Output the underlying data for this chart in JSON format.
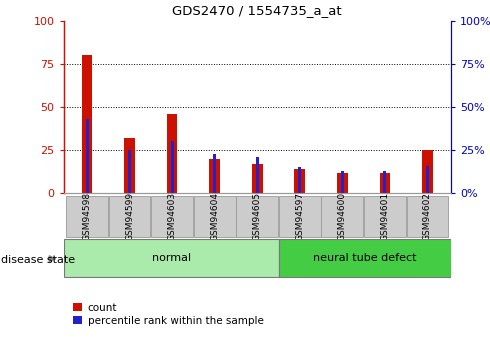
{
  "title": "GDS2470 / 1554735_a_at",
  "samples": [
    "GSM94598",
    "GSM94599",
    "GSM94603",
    "GSM94604",
    "GSM94605",
    "GSM94597",
    "GSM94600",
    "GSM94601",
    "GSM94602"
  ],
  "red_values": [
    80,
    32,
    46,
    20,
    17,
    14,
    12,
    12,
    25
  ],
  "blue_values": [
    43,
    25,
    30,
    23,
    21,
    15,
    13,
    13,
    16
  ],
  "groups": [
    {
      "label": "normal",
      "start": 0,
      "end": 5,
      "color": "#aaeaaa"
    },
    {
      "label": "neural tube defect",
      "start": 5,
      "end": 9,
      "color": "#44cc44"
    }
  ],
  "ylim": [
    0,
    100
  ],
  "yticks": [
    0,
    25,
    50,
    75,
    100
  ],
  "grid_values": [
    25,
    50,
    75
  ],
  "red_bar_width": 0.25,
  "blue_bar_width": 0.07,
  "red_color": "#cc1100",
  "blue_color": "#2222cc",
  "left_axis_color": "#cc1100",
  "right_axis_color": "#0000cc",
  "disease_label": "disease state",
  "legend_items": [
    "count",
    "percentile rank within the sample"
  ],
  "bg_color": "#ffffff",
  "tickbox_color": "#cccccc",
  "tickbox_edge_color": "#999999"
}
